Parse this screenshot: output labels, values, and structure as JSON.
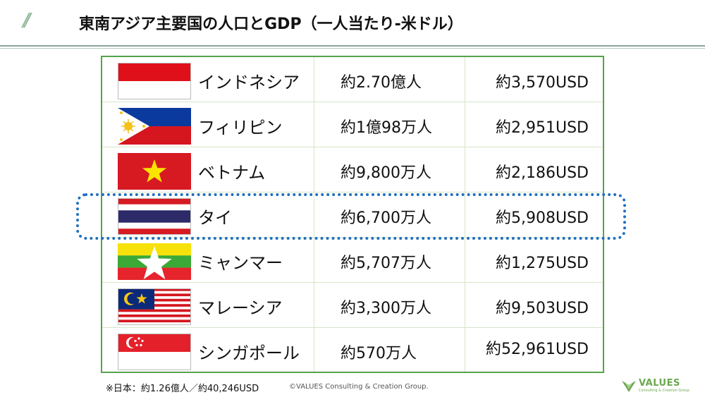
{
  "header": {
    "decoration": "//",
    "title": "東南アジア主要国の人口とGDP（一人当たり-米ドル）"
  },
  "countries": [
    {
      "flag": "indonesia-flag",
      "name": "インドネシア",
      "population": "約2.70億人",
      "gdp": "約3,570USD"
    },
    {
      "flag": "philippines-flag",
      "name": "フィリピン",
      "population": "約1億98万人",
      "gdp": "約2,951USD"
    },
    {
      "flag": "vietnam-flag",
      "name": "ベトナム",
      "population": "約9,800万人",
      "gdp": "約2,186USD"
    },
    {
      "flag": "thailand-flag",
      "name": "タイ",
      "population": "約6,700万人",
      "gdp": "約5,908USD",
      "highlighted": true
    },
    {
      "flag": "myanmar-flag",
      "name": "ミャンマー",
      "population": "約5,707万人",
      "gdp": "約1,275USD"
    },
    {
      "flag": "malaysia-flag",
      "name": "マレーシア",
      "population": "約3,300万人",
      "gdp": "約9,503USD"
    },
    {
      "flag": "singapore-flag",
      "name": "シンガポール",
      "population": "約570万人",
      "gdp": "約52,961USD"
    }
  ],
  "footer": {
    "note": "※日本：約1.26億人／約40,246USD",
    "copyright": "©VALUES Consulting & Creation Group.",
    "logo_text": "VALUES",
    "logo_sub": "Consulting & Creation Group"
  },
  "colors": {
    "table_border": "#55a34a",
    "highlight": "#1f6fc0",
    "logo": "#6aa84f"
  }
}
